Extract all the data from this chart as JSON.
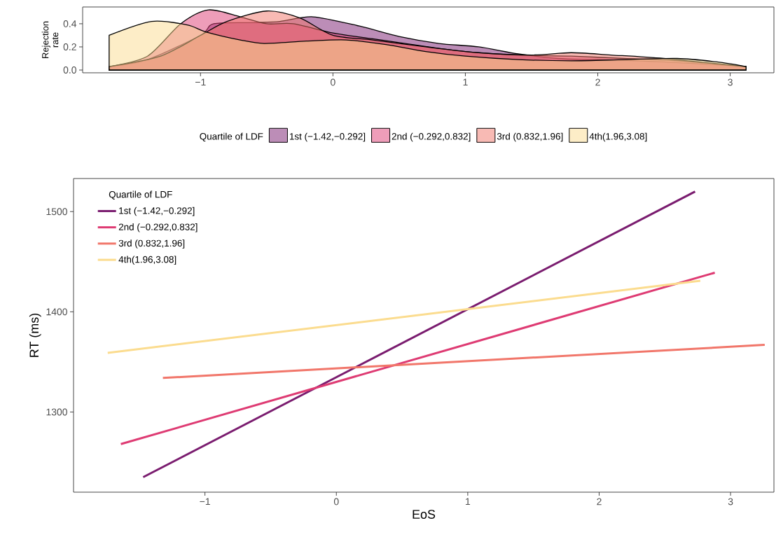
{
  "chart_data": [
    {
      "type": "area",
      "ylabel": "Rejection rate",
      "legend_title": "Quartile of LDF",
      "legend": "bottom",
      "xlim": [
        -1.89,
        3.33
      ],
      "ylim": [
        -0.024,
        0.545
      ],
      "xticks": [
        {
          "value": -1,
          "label": "−1"
        },
        0,
        1,
        2,
        3
      ],
      "yticks": [
        {
          "value": 0,
          "label": "0.0"
        },
        {
          "value": 0.2,
          "label": "0.2"
        },
        {
          "value": 0.4,
          "label": "0.4"
        }
      ],
      "series": [
        {
          "name": "1st (−1.42,−0.292]",
          "color": "#7a1c6f",
          "x": [
            -1.69,
            -1.4,
            -1.0,
            -0.9,
            -0.6,
            -0.4,
            -0.15,
            0.2,
            0.5,
            0.8,
            1.1,
            1.4,
            1.7,
            2.0,
            2.5,
            3.12
          ],
          "values": [
            0.03,
            0.09,
            0.3,
            0.4,
            0.41,
            0.42,
            0.46,
            0.38,
            0.29,
            0.23,
            0.2,
            0.14,
            0.1,
            0.09,
            0.07,
            0.03
          ]
        },
        {
          "name": "2nd (−0.292,0.832]",
          "color": "#de3b73",
          "x": [
            -1.69,
            -1.4,
            -1.15,
            -0.94,
            -0.7,
            -0.5,
            -0.3,
            0.0,
            0.3,
            0.6,
            1.0,
            1.4,
            1.8,
            2.2,
            2.6,
            3.12
          ],
          "values": [
            0.03,
            0.12,
            0.4,
            0.52,
            0.46,
            0.4,
            0.4,
            0.32,
            0.27,
            0.22,
            0.16,
            0.13,
            0.12,
            0.1,
            0.08,
            0.03
          ]
        },
        {
          "name": "3rd (0.832,1.96]",
          "color": "#f1766a",
          "x": [
            -1.69,
            -1.3,
            -1.0,
            -0.8,
            -0.5,
            -0.25,
            0.0,
            0.3,
            0.7,
            1.1,
            1.5,
            1.8,
            2.1,
            2.5,
            3.12
          ],
          "values": [
            0.03,
            0.12,
            0.3,
            0.42,
            0.51,
            0.45,
            0.3,
            0.26,
            0.2,
            0.15,
            0.13,
            0.15,
            0.13,
            0.1,
            0.03
          ]
        },
        {
          "name": "4th(1.96,3.08]",
          "color": "#fbdc8f",
          "x": [
            -1.69,
            -1.37,
            -1.1,
            -0.96,
            -0.7,
            -0.52,
            -0.2,
            0.1,
            0.4,
            0.7,
            1.0,
            1.4,
            1.8,
            2.2,
            2.6,
            2.9,
            3.12
          ],
          "values": [
            0.3,
            0.42,
            0.39,
            0.33,
            0.26,
            0.23,
            0.25,
            0.26,
            0.22,
            0.16,
            0.12,
            0.09,
            0.08,
            0.09,
            0.1,
            0.07,
            0.03
          ]
        }
      ]
    },
    {
      "type": "line",
      "xlabel": "EoS",
      "ylabel": "RT (ms)",
      "legend_title": "Quartile of LDF",
      "legend": "top left",
      "line_style": "solid",
      "xlim": [
        -2.0,
        3.33
      ],
      "ylim": [
        1220,
        1533
      ],
      "xticks": [
        {
          "value": -1,
          "label": "−1"
        },
        0,
        1,
        2,
        3
      ],
      "yticks": [
        1300,
        1400,
        1500
      ],
      "series": [
        {
          "name": "1st (−1.42,−0.292]",
          "color": "#7a1c6f",
          "x": [
            -1.47,
            2.73
          ],
          "values": [
            1235,
            1520
          ]
        },
        {
          "name": "2nd (−0.292,0.832]",
          "color": "#de3b73",
          "x": [
            -1.64,
            2.88
          ],
          "values": [
            1268,
            1439
          ]
        },
        {
          "name": "3rd (0.832,1.96]",
          "color": "#f1766a",
          "x": [
            -1.32,
            3.26
          ],
          "values": [
            1334,
            1367
          ]
        },
        {
          "name": "4th(1.96,3.08]",
          "color": "#fbdc8f",
          "x": [
            -1.74,
            2.77
          ],
          "values": [
            1359,
            1431
          ]
        }
      ]
    }
  ]
}
